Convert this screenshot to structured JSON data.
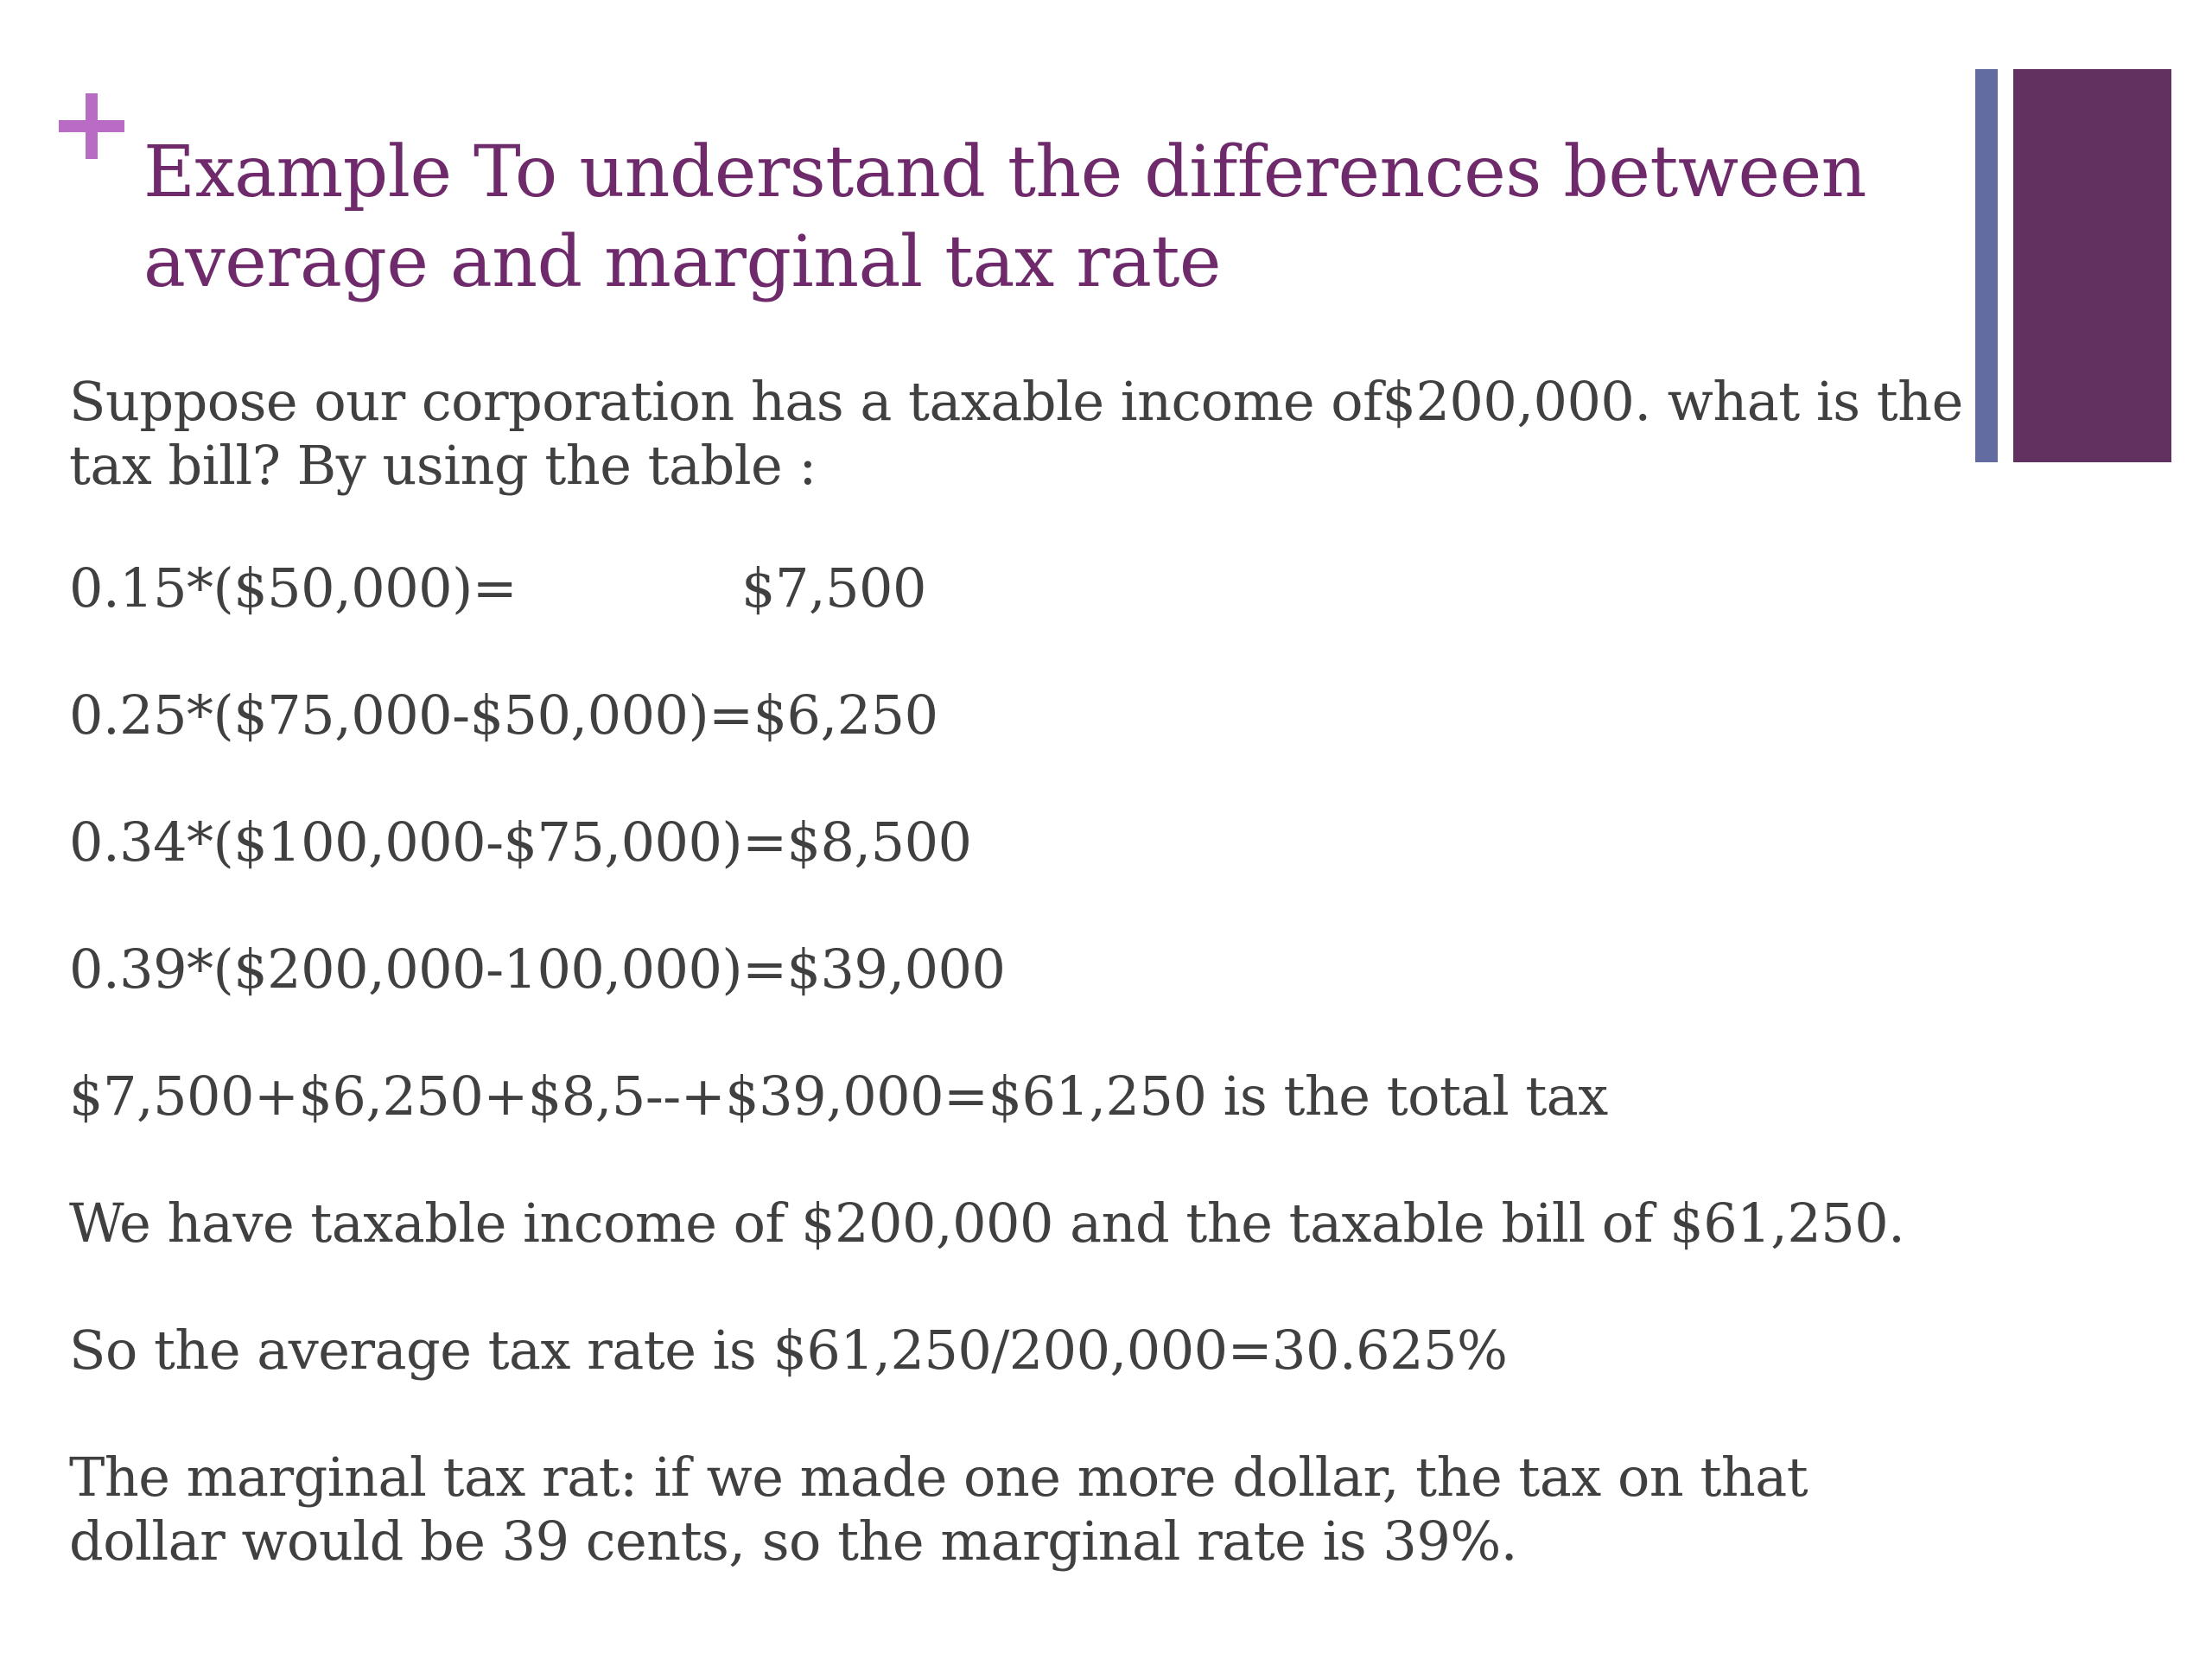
{
  "slide": {
    "plus_icon": "plus-icon",
    "accent_colors": {
      "plus": "#b86cc3",
      "thin_bar": "#626ca1",
      "wide_bar": "#62315f",
      "title": "#6e2a6a",
      "body_text": "#404040"
    },
    "title": "Example To understand the differences between average and marginal tax rate",
    "intro": "Suppose our corporation has a taxable income of$200,000. what is the tax bill? By using the table :",
    "calc_1_expression": "0.15*($50,000)=",
    "calc_1_result": "$7,500",
    "calc_2": "0.25*($75,000-$50,000)=$6,250",
    "calc_3": "0.34*($100,000-$75,000)=$8,500",
    "calc_4": "0.39*($200,000-100,000)=$39,000",
    "total": "$7,500+$6,250+$8,5--+$39,000=$61,250 is the total tax",
    "summary": "We have taxable income of $200,000 and the taxable bill of $61,250.",
    "average_rate": "So the average tax rate is $61,250/200,000=30.625%",
    "marginal_rate": "The marginal tax rat: if we made one more dollar, the tax on that dollar would be 39 cents, so the marginal rate is 39%."
  }
}
